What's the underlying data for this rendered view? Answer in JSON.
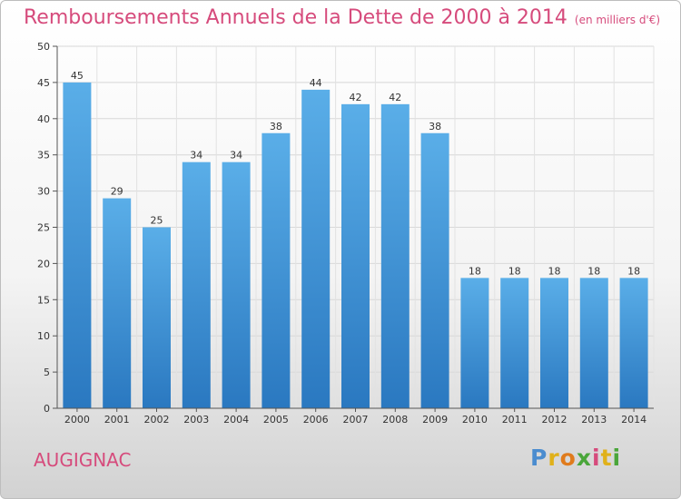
{
  "header": {
    "title": "Remboursements Annuels de la Dette de 2000 à 2014",
    "unit": "(en milliers d'€)"
  },
  "footer": {
    "commune": "AUGIGNAC",
    "logo": "Proxiti"
  },
  "colors": {
    "bar_top": "#5aaee8",
    "bar_bottom": "#2a78c0",
    "accent": "#d64b7c"
  },
  "chart_data": {
    "type": "bar",
    "title": "Remboursements Annuels de la Dette de 2000 à 2014",
    "xlabel": "",
    "ylabel": "",
    "categories": [
      "2000",
      "2001",
      "2002",
      "2003",
      "2004",
      "2005",
      "2006",
      "2007",
      "2008",
      "2009",
      "2010",
      "2011",
      "2012",
      "2013",
      "2014"
    ],
    "values": [
      45,
      29,
      25,
      34,
      34,
      38,
      44,
      42,
      42,
      38,
      18,
      18,
      18,
      18,
      18
    ],
    "ylim": [
      0,
      50
    ],
    "yticks": [
      0,
      5,
      10,
      15,
      20,
      25,
      30,
      35,
      40,
      45,
      50
    ],
    "grid": true,
    "data_labels": true
  }
}
